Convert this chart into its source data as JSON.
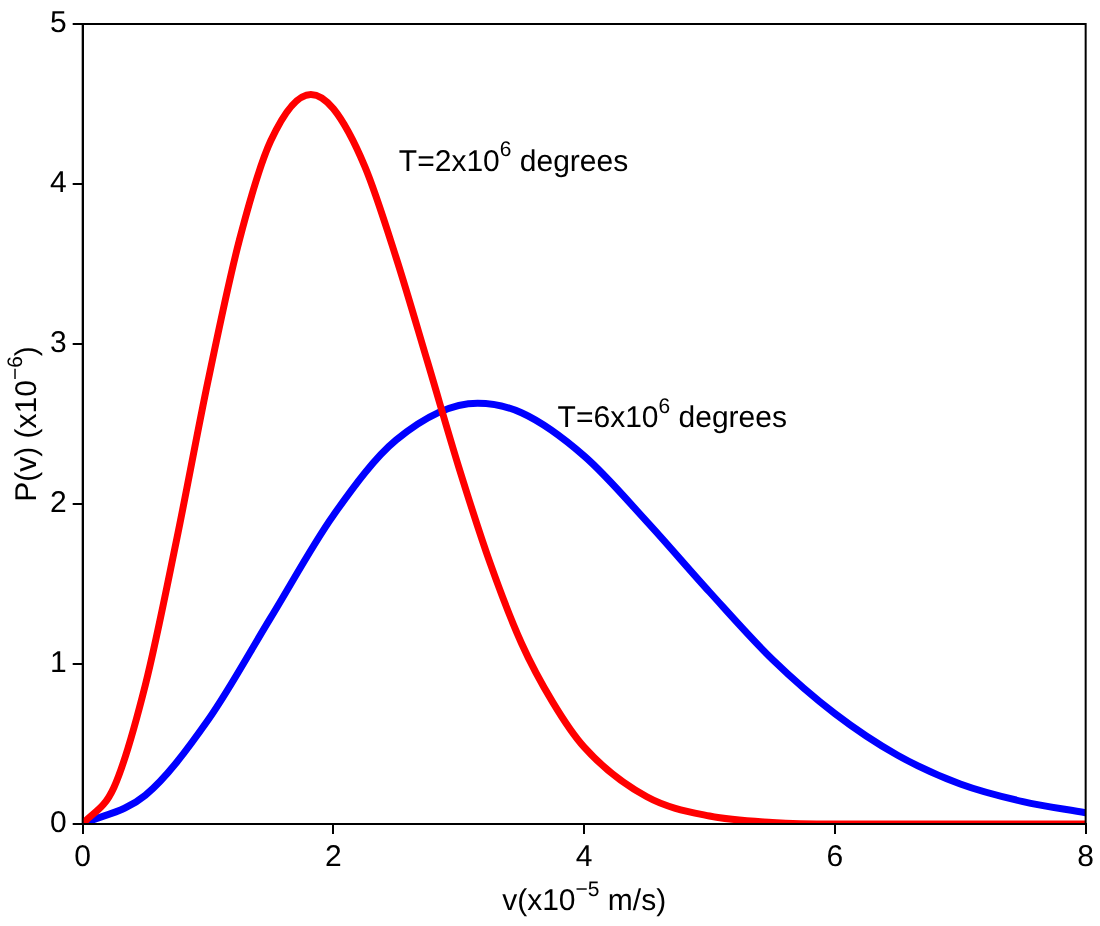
{
  "chart_data": {
    "type": "line",
    "xlabel": "v(x10$^{−5}$ m/s)",
    "ylabel": "P(v) (x10$^{−6}$)",
    "xlim": [
      0,
      8
    ],
    "ylim": [
      0,
      5
    ],
    "xticks": [
      0,
      2,
      4,
      6,
      8
    ],
    "yticks": [
      0,
      1,
      2,
      3,
      4,
      5
    ],
    "grid": false,
    "legend": false,
    "marker": "none",
    "line_style": "solid",
    "series": [
      {
        "name": "T=2x10$^{6}$ degrees",
        "color": "#ff0000",
        "x": [
          0,
          0.25,
          0.5,
          0.75,
          1,
          1.25,
          1.5,
          1.82,
          2,
          2.25,
          2.5,
          2.75,
          3,
          3.25,
          3.5,
          3.75,
          4,
          4.5,
          5,
          5.5,
          6,
          7,
          8
        ],
        "values": [
          0,
          0.23,
          0.87,
          1.78,
          2.77,
          3.65,
          4.27,
          4.56,
          4.47,
          4.11,
          3.54,
          2.89,
          2.23,
          1.63,
          1.13,
          0.76,
          0.48,
          0.17,
          0.05,
          0.01,
          0,
          0,
          0
        ]
      },
      {
        "name": "T=6x10$^{6}$ degrees",
        "color": "#0000ff",
        "x": [
          0,
          0.5,
          1,
          1.5,
          2,
          2.5,
          3.15,
          3.5,
          4,
          4.5,
          5,
          5.5,
          6,
          6.5,
          7,
          7.5,
          8
        ],
        "values": [
          0,
          0.18,
          0.65,
          1.29,
          1.93,
          2.4,
          2.63,
          2.57,
          2.3,
          1.89,
          1.45,
          1.03,
          0.69,
          0.43,
          0.25,
          0.14,
          0.07
        ]
      }
    ]
  }
}
